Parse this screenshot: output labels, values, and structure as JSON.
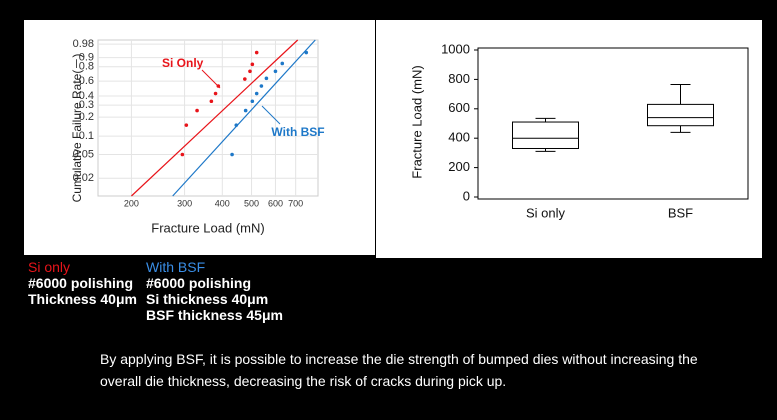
{
  "chart_data": [
    {
      "type": "scatter",
      "xlabel": "Fracture Load (mN)",
      "ylabel": "Cumulative Failure Rate(－)",
      "xscale": "log",
      "yscale": "weibull",
      "grid": true,
      "xlim": [
        155,
        830
      ],
      "ylim": [
        0.01,
        0.99
      ],
      "xticks": [
        200,
        300,
        400,
        500,
        600,
        700
      ],
      "yticks": [
        0.02,
        0.05,
        0.1,
        0.2,
        0.3,
        0.4,
        0.6,
        0.8,
        0.9,
        0.98
      ],
      "series": [
        {
          "name": "Si Only",
          "color": "#e8141a",
          "x": [
            295,
            304,
            330,
            368,
            380,
            388,
            475,
            494,
            503,
            520
          ],
          "values": [
            0.05,
            0.15,
            0.25,
            0.34,
            0.43,
            0.53,
            0.63,
            0.74,
            0.83,
            0.94
          ],
          "fit": {
            "x": [
              200,
              711
            ],
            "values": [
              0.01,
              0.99
            ]
          }
        },
        {
          "name": "With BSF",
          "color": "#1e78c8",
          "x": [
            431,
            445,
            478,
            503,
            520,
            539,
            560,
            600,
            632,
            759
          ],
          "values": [
            0.05,
            0.15,
            0.25,
            0.34,
            0.43,
            0.53,
            0.64,
            0.74,
            0.84,
            0.94
          ],
          "fit": {
            "x": [
              274,
              813
            ],
            "values": [
              0.01,
              0.99
            ]
          }
        }
      ]
    },
    {
      "type": "box",
      "ylabel": "Fracture Load (mN)",
      "ylim": [
        0,
        1000
      ],
      "yticks": [
        0,
        200,
        400,
        600,
        800,
        1000
      ],
      "categories": [
        "Si only",
        "BSF"
      ],
      "boxes": [
        {
          "min": 310,
          "q1": 330,
          "median": 400,
          "q3": 510,
          "max": 535
        },
        {
          "min": 440,
          "q1": 485,
          "median": 540,
          "q3": 630,
          "max": 765
        }
      ]
    }
  ],
  "notes": [
    {
      "title": "Si only",
      "color": "#e8141a",
      "lines": [
        "#6000 polishing",
        "Thickness 40μm"
      ]
    },
    {
      "title": "With BSF",
      "color": "#3a8ee6",
      "lines": [
        "#6000 polishing",
        "Si thickness 40μm",
        "BSF thickness 45μm"
      ]
    }
  ],
  "caption": "By applying BSF, it is possible to increase the die strength of bumped dies without increasing the overall die thickness, decreasing the risk of cracks during pick up."
}
